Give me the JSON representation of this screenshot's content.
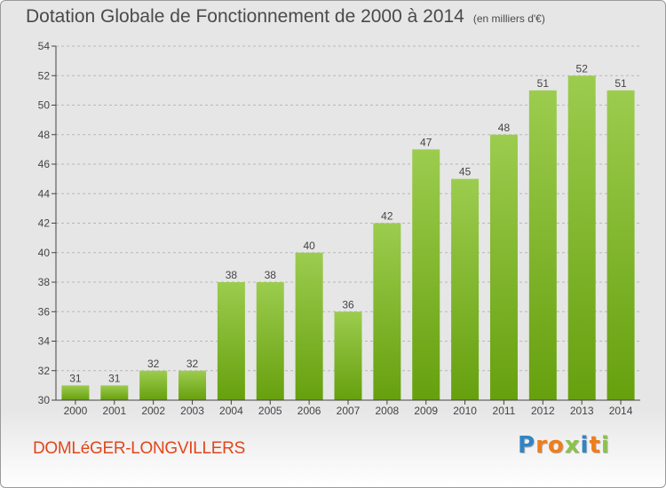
{
  "header": {
    "title": "Dotation Globale de Fonctionnement de 2000 à 2014",
    "unit": "(en milliers d'€)"
  },
  "footer": {
    "commune": "DOMLéGER-LONGVILLERS",
    "logo_letters": [
      "P",
      "r",
      "o",
      "x",
      "i",
      "t",
      "i"
    ],
    "logo_colors": [
      "#2f84c6",
      "#f07d1a",
      "#f07d1a",
      "#8bc34a",
      "#2f84c6",
      "#f07d1a",
      "#8bc34a"
    ]
  },
  "chart_data": {
    "type": "bar",
    "title": "Dotation Globale de Fonctionnement de 2000 à 2014",
    "categories": [
      "2000",
      "2001",
      "2002",
      "2003",
      "2004",
      "2005",
      "2006",
      "2007",
      "2008",
      "2009",
      "2010",
      "2011",
      "2012",
      "2013",
      "2014"
    ],
    "values": [
      31,
      31,
      32,
      32,
      38,
      38,
      40,
      36,
      42,
      47,
      45,
      48,
      51,
      52,
      51
    ],
    "ylim": [
      30,
      54
    ],
    "yticks": [
      30,
      32,
      34,
      36,
      38,
      40,
      42,
      44,
      46,
      48,
      50,
      52,
      54
    ],
    "xlabel": "",
    "ylabel": "",
    "grid": true,
    "colors": {
      "bar_top": "#9ccc4e",
      "bar_bottom": "#66a00e",
      "grid": "#b8b8b8",
      "axis": "#444444"
    }
  }
}
